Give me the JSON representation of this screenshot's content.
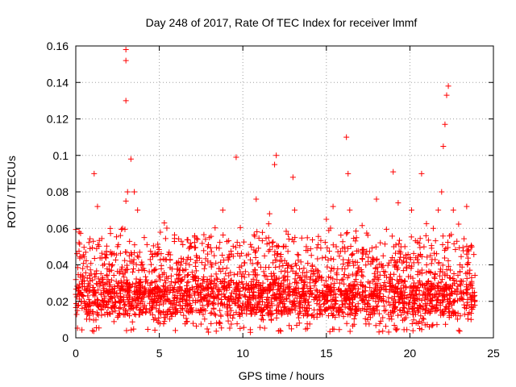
{
  "chart_data": {
    "type": "scatter",
    "title": "Day 248 of 2017, Rate Of TEC Index for receiver lmmf",
    "xlabel": "GPS time / hours",
    "ylabel": "ROTI / TECUs",
    "xlim": [
      0,
      25
    ],
    "ylim": [
      0,
      0.16
    ],
    "x_ticks": [
      0,
      5,
      10,
      15,
      20,
      25
    ],
    "y_ticks": [
      0,
      0.02,
      0.04,
      0.06,
      0.08,
      0.1,
      0.12,
      0.14,
      0.16
    ],
    "grid": true,
    "marker": "+",
    "colors": {
      "series": "#ff0000",
      "grid": "#a0a0a0",
      "axis": "#000000"
    },
    "series": [
      {
        "name": "",
        "x": [
          0.1,
          0.2,
          0.3,
          0.5,
          0.8,
          1.1,
          1.3,
          1.5,
          1.7,
          2.0,
          2.2,
          2.5,
          2.8,
          3.0,
          3.0,
          3.0,
          3.0,
          3.1,
          3.2,
          3.3,
          3.5,
          3.6,
          3.7,
          3.9,
          4.1,
          4.3,
          4.6,
          5.0,
          5.3,
          5.6,
          6.0,
          6.4,
          6.8,
          7.2,
          7.6,
          8.0,
          8.4,
          8.8,
          9.2,
          9.6,
          10.0,
          10.4,
          10.8,
          11.2,
          11.6,
          11.9,
          12.0,
          12.3,
          12.7,
          13.0,
          13.1,
          13.4,
          13.8,
          14.2,
          14.6,
          15.0,
          15.4,
          15.8,
          16.2,
          16.3,
          16.4,
          16.8,
          17.2,
          17.6,
          18.0,
          18.4,
          18.8,
          19.0,
          19.3,
          19.7,
          20.1,
          20.5,
          20.7,
          21.0,
          21.4,
          21.7,
          21.9,
          22.0,
          22.1,
          22.2,
          22.3,
          22.6,
          23.0,
          23.4,
          23.7
        ],
        "y": [
          0.015,
          0.058,
          0.025,
          0.02,
          0.018,
          0.09,
          0.072,
          0.03,
          0.02,
          0.025,
          0.04,
          0.05,
          0.06,
          0.158,
          0.152,
          0.13,
          0.075,
          0.08,
          0.045,
          0.098,
          0.08,
          0.03,
          0.07,
          0.025,
          0.055,
          0.03,
          0.02,
          0.018,
          0.063,
          0.025,
          0.018,
          0.02,
          0.04,
          0.015,
          0.03,
          0.055,
          0.035,
          0.07,
          0.02,
          0.099,
          0.035,
          0.025,
          0.076,
          0.03,
          0.068,
          0.095,
          0.1,
          0.03,
          0.04,
          0.088,
          0.07,
          0.02,
          0.05,
          0.035,
          0.025,
          0.065,
          0.072,
          0.03,
          0.11,
          0.09,
          0.07,
          0.035,
          0.025,
          0.03,
          0.076,
          0.045,
          0.03,
          0.091,
          0.074,
          0.05,
          0.07,
          0.045,
          0.09,
          0.04,
          0.06,
          0.07,
          0.08,
          0.105,
          0.117,
          0.133,
          0.138,
          0.07,
          0.04,
          0.072,
          0.03
        ]
      }
    ]
  }
}
